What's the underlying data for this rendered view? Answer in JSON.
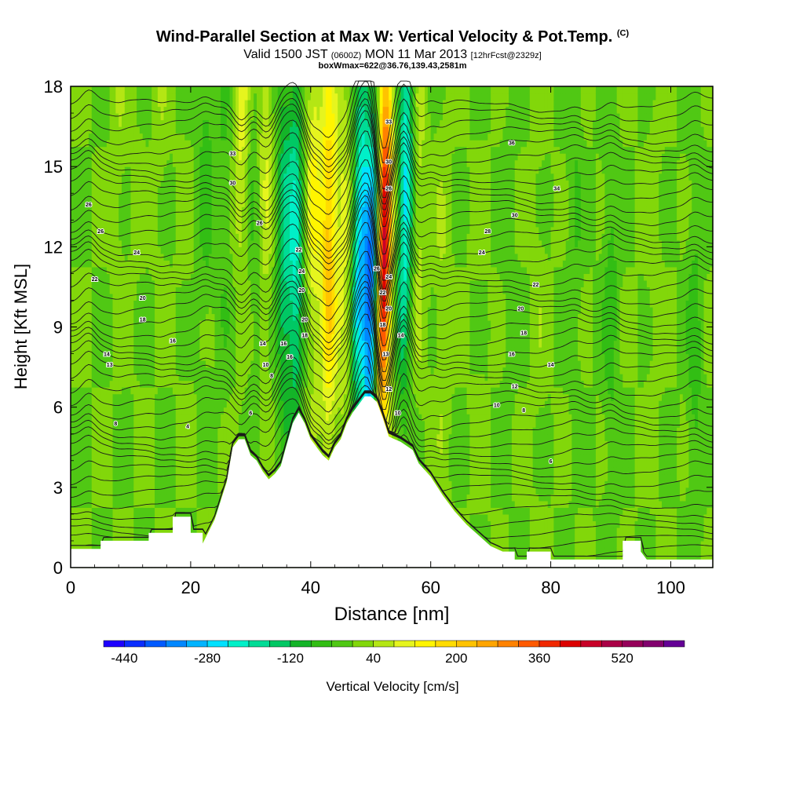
{
  "chart_data": {
    "type": "heatmap",
    "title": {
      "main": "Wind-Parallel Section at Max W: Vertical Velocity & Pot.Temp.",
      "copyright": "(C)"
    },
    "subtitle": {
      "valid": "Valid 1500 JST",
      "utc": "(0600Z)",
      "date": "MON 11 Mar 2013",
      "forecast": "[12hrFcst@2329z]"
    },
    "subtitle2": "boxWmax=622@36.76,139.43,2581m",
    "xlabel": "Distance [nm]",
    "ylabel": "Height [Kft MSL]",
    "xlim": [
      0,
      107
    ],
    "ylim": [
      0,
      18
    ],
    "x_ticks": [
      "0",
      "20",
      "40",
      "60",
      "80",
      "100"
    ],
    "y_ticks": [
      "0",
      "3",
      "6",
      "9",
      "12",
      "15",
      "18"
    ],
    "colorbar": {
      "label": "Vertical Velocity [cm/s]",
      "tick_labels": [
        "-440",
        "-280",
        "-120",
        "40",
        "200",
        "360",
        "520"
      ],
      "levels": [
        -480,
        -440,
        -400,
        -360,
        -320,
        -280,
        -240,
        -200,
        -160,
        -120,
        -80,
        -40,
        0,
        40,
        80,
        120,
        160,
        200,
        240,
        280,
        320,
        360,
        400,
        440,
        480,
        520,
        560,
        600,
        640
      ],
      "colors": [
        "#1e00ff",
        "#0a2dff",
        "#005aff",
        "#0087ff",
        "#00b4ff",
        "#00e1ff",
        "#00f0c8",
        "#00dc96",
        "#00c864",
        "#14b428",
        "#32be14",
        "#50c814",
        "#82d70a",
        "#b4e614",
        "#e6f51e",
        "#fff500",
        "#ffdc00",
        "#ffc300",
        "#ffa500",
        "#ff8200",
        "#ff5a00",
        "#f02800",
        "#dc0000",
        "#c80028",
        "#aa0046",
        "#96005a",
        "#82006e",
        "#640096"
      ]
    },
    "terrain_kft": [
      [
        0,
        0.7
      ],
      [
        5,
        0.7
      ],
      [
        5,
        1.0
      ],
      [
        13,
        1.0
      ],
      [
        13,
        1.3
      ],
      [
        17,
        1.3
      ],
      [
        17,
        1.9
      ],
      [
        20,
        1.9
      ],
      [
        20,
        1.3
      ],
      [
        22,
        1.3
      ],
      [
        22,
        0.9
      ],
      [
        24,
        1.8
      ],
      [
        26,
        3.2
      ],
      [
        27,
        4.5
      ],
      [
        28,
        4.8
      ],
      [
        29,
        4.8
      ],
      [
        30,
        4.2
      ],
      [
        31,
        4.0
      ],
      [
        32,
        3.6
      ],
      [
        33,
        3.3
      ],
      [
        34,
        3.5
      ],
      [
        35,
        3.8
      ],
      [
        36,
        4.6
      ],
      [
        37,
        5.4
      ],
      [
        38,
        5.8
      ],
      [
        39,
        5.4
      ],
      [
        40,
        4.8
      ],
      [
        41,
        4.5
      ],
      [
        42,
        4.2
      ],
      [
        43,
        4.0
      ],
      [
        44,
        4.5
      ],
      [
        45,
        4.8
      ],
      [
        46,
        5.4
      ],
      [
        47,
        5.8
      ],
      [
        48,
        6.1
      ],
      [
        49,
        6.4
      ],
      [
        50,
        6.4
      ],
      [
        51,
        6.2
      ],
      [
        52,
        5.6
      ],
      [
        53,
        4.9
      ],
      [
        55,
        4.7
      ],
      [
        57,
        4.4
      ],
      [
        58,
        3.9
      ],
      [
        60,
        3.4
      ],
      [
        62,
        2.7
      ],
      [
        64,
        2.1
      ],
      [
        66,
        1.6
      ],
      [
        68,
        1.2
      ],
      [
        70,
        0.8
      ],
      [
        72,
        0.6
      ],
      [
        74,
        0.6
      ],
      [
        74,
        0.3
      ],
      [
        76,
        0.3
      ],
      [
        76,
        0.6
      ],
      [
        80,
        0.6
      ],
      [
        80,
        0.3
      ],
      [
        92,
        0.3
      ],
      [
        92,
        1.0
      ],
      [
        95,
        1.0
      ],
      [
        95,
        0.6
      ],
      [
        96,
        0.3
      ],
      [
        107,
        0.3
      ]
    ],
    "w_columns": [
      {
        "x": 1,
        "w": 0,
        "h": 12
      },
      {
        "x": 3,
        "w": -100,
        "h": 30
      },
      {
        "x": 8,
        "w": 30,
        "h": 18
      },
      {
        "x": 11,
        "w": 10,
        "h": 16
      },
      {
        "x": 15,
        "w": 30,
        "h": 20
      },
      {
        "x": 19,
        "w": 10,
        "h": 12
      },
      {
        "x": 22.5,
        "w": -60,
        "h": 16
      },
      {
        "x": 25.5,
        "w": -40,
        "h": 14
      },
      {
        "x": 28.5,
        "w": 100,
        "h": 18
      },
      {
        "x": 30.5,
        "w": -40,
        "h": 14
      },
      {
        "x": 32.5,
        "w": 80,
        "h": 16
      },
      {
        "x": 35.5,
        "w": -150,
        "h": 12
      },
      {
        "x": 37.5,
        "w": -200,
        "h": 12
      },
      {
        "x": 40.5,
        "w": 120,
        "h": 14
      },
      {
        "x": 43,
        "w": 220,
        "h": 12
      },
      {
        "x": 45.5,
        "w": 90,
        "h": 12
      },
      {
        "x": 48,
        "w": -260,
        "h": 12
      },
      {
        "x": 50,
        "w": -380,
        "h": 10
      },
      {
        "x": 52,
        "w": 470,
        "h": 12
      },
      {
        "x": 55.5,
        "w": -250,
        "h": 14
      },
      {
        "x": 58,
        "w": 60,
        "h": 14
      },
      {
        "x": 62,
        "w": 40,
        "h": 10
      },
      {
        "x": 68,
        "w": 10,
        "h": 10
      },
      {
        "x": 73,
        "w": -20,
        "h": 12
      },
      {
        "x": 78,
        "w": 20,
        "h": 10
      },
      {
        "x": 84,
        "w": -40,
        "h": 14
      },
      {
        "x": 90,
        "w": -60,
        "h": 10
      },
      {
        "x": 97,
        "w": 20,
        "h": 12
      },
      {
        "x": 104,
        "w": -60,
        "h": 8
      }
    ],
    "theta_contour_labels": [
      {
        "text": "26",
        "x": 3,
        "y": 13.6
      },
      {
        "text": "26",
        "x": 5,
        "y": 12.6
      },
      {
        "text": "24",
        "x": 11,
        "y": 11.8
      },
      {
        "text": "22",
        "x": 4,
        "y": 10.8
      },
      {
        "text": "20",
        "x": 12,
        "y": 10.1
      },
      {
        "text": "18",
        "x": 12,
        "y": 9.3
      },
      {
        "text": "16",
        "x": 17,
        "y": 8.5
      },
      {
        "text": "14",
        "x": 6,
        "y": 8.0
      },
      {
        "text": "13",
        "x": 6.5,
        "y": 7.6
      },
      {
        "text": "8",
        "x": 7.5,
        "y": 5.4
      },
      {
        "text": "4",
        "x": 19.5,
        "y": 5.3
      },
      {
        "text": "33",
        "x": 27,
        "y": 15.5
      },
      {
        "text": "30",
        "x": 27,
        "y": 14.4
      },
      {
        "text": "26",
        "x": 31.5,
        "y": 12.9
      },
      {
        "text": "22",
        "x": 38,
        "y": 11.9
      },
      {
        "text": "24",
        "x": 38.5,
        "y": 11.1
      },
      {
        "text": "20",
        "x": 38.5,
        "y": 10.4
      },
      {
        "text": "20",
        "x": 39,
        "y": 9.3
      },
      {
        "text": "18",
        "x": 39,
        "y": 8.7
      },
      {
        "text": "16",
        "x": 35.5,
        "y": 8.4
      },
      {
        "text": "14",
        "x": 32,
        "y": 8.4
      },
      {
        "text": "16",
        "x": 36.5,
        "y": 7.9
      },
      {
        "text": "10",
        "x": 32.5,
        "y": 7.6
      },
      {
        "text": "8",
        "x": 33.5,
        "y": 7.2
      },
      {
        "text": "6",
        "x": 30,
        "y": 5.8
      },
      {
        "text": "33",
        "x": 53,
        "y": 16.7
      },
      {
        "text": "30",
        "x": 53,
        "y": 15.2
      },
      {
        "text": "26",
        "x": 53,
        "y": 14.2
      },
      {
        "text": "26",
        "x": 51,
        "y": 11.2
      },
      {
        "text": "24",
        "x": 53,
        "y": 10.9
      },
      {
        "text": "22",
        "x": 52,
        "y": 10.3
      },
      {
        "text": "20",
        "x": 53,
        "y": 9.7
      },
      {
        "text": "18",
        "x": 52,
        "y": 9.1
      },
      {
        "text": "14",
        "x": 55,
        "y": 8.7
      },
      {
        "text": "13",
        "x": 52.5,
        "y": 8.0
      },
      {
        "text": "12",
        "x": 53,
        "y": 6.7
      },
      {
        "text": "10",
        "x": 54.5,
        "y": 5.8
      },
      {
        "text": "36",
        "x": 73.5,
        "y": 15.9
      },
      {
        "text": "34",
        "x": 81,
        "y": 14.2
      },
      {
        "text": "30",
        "x": 74,
        "y": 13.2
      },
      {
        "text": "28",
        "x": 69.5,
        "y": 12.6
      },
      {
        "text": "24",
        "x": 68.5,
        "y": 11.8
      },
      {
        "text": "22",
        "x": 77.5,
        "y": 10.6
      },
      {
        "text": "20",
        "x": 75,
        "y": 9.7
      },
      {
        "text": "18",
        "x": 75.5,
        "y": 8.8
      },
      {
        "text": "16",
        "x": 73.5,
        "y": 8.0
      },
      {
        "text": "14",
        "x": 80,
        "y": 7.6
      },
      {
        "text": "12",
        "x": 74,
        "y": 6.8
      },
      {
        "text": "10",
        "x": 71,
        "y": 6.1
      },
      {
        "text": "8",
        "x": 75.5,
        "y": 5.9
      },
      {
        "text": "6",
        "x": 80,
        "y": 4.0
      }
    ],
    "grid": false,
    "legend": "bottom colorbar"
  }
}
